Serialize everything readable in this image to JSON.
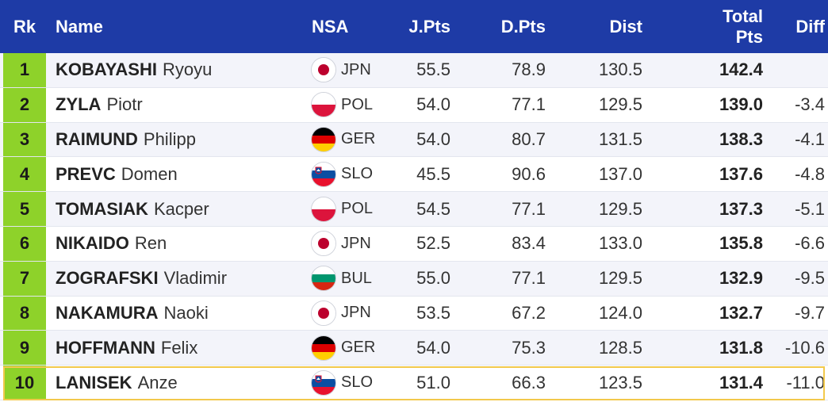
{
  "header": {
    "rk": "Rk",
    "name": "Name",
    "nsa": "NSA",
    "jpts": "J.Pts",
    "dpts": "D.Pts",
    "dist": "Dist",
    "total_line1": "Total",
    "total_line2": "Pts",
    "diff": "Diff"
  },
  "colors": {
    "header_bg": "#1e3ba6",
    "rank_bg": "#8ed22a",
    "highlight": "#f2c94c"
  },
  "rows": [
    {
      "rk": "1",
      "last": "KOBAYASHI",
      "first": "Ryoyu",
      "nsa": "JPN",
      "flag": "jpn-flag-icon",
      "jpts": "55.5",
      "dpts": "78.9",
      "dist": "130.5",
      "total": "142.4",
      "diff": ""
    },
    {
      "rk": "2",
      "last": "ZYLA",
      "first": "Piotr",
      "nsa": "POL",
      "flag": "pol-flag-icon",
      "jpts": "54.0",
      "dpts": "77.1",
      "dist": "129.5",
      "total": "139.0",
      "diff": "-3.4"
    },
    {
      "rk": "3",
      "last": "RAIMUND",
      "first": "Philipp",
      "nsa": "GER",
      "flag": "ger-flag-icon",
      "jpts": "54.0",
      "dpts": "80.7",
      "dist": "131.5",
      "total": "138.3",
      "diff": "-4.1"
    },
    {
      "rk": "4",
      "last": "PREVC",
      "first": "Domen",
      "nsa": "SLO",
      "flag": "slo-flag-icon",
      "jpts": "45.5",
      "dpts": "90.6",
      "dist": "137.0",
      "total": "137.6",
      "diff": "-4.8"
    },
    {
      "rk": "5",
      "last": "TOMASIAK",
      "first": "Kacper",
      "nsa": "POL",
      "flag": "pol-flag-icon",
      "jpts": "54.5",
      "dpts": "77.1",
      "dist": "129.5",
      "total": "137.3",
      "diff": "-5.1"
    },
    {
      "rk": "6",
      "last": "NIKAIDO",
      "first": "Ren",
      "nsa": "JPN",
      "flag": "jpn-flag-icon",
      "jpts": "52.5",
      "dpts": "83.4",
      "dist": "133.0",
      "total": "135.8",
      "diff": "-6.6"
    },
    {
      "rk": "7",
      "last": "ZOGRAFSKI",
      "first": "Vladimir",
      "nsa": "BUL",
      "flag": "bul-flag-icon",
      "jpts": "55.0",
      "dpts": "77.1",
      "dist": "129.5",
      "total": "132.9",
      "diff": "-9.5"
    },
    {
      "rk": "8",
      "last": "NAKAMURA",
      "first": "Naoki",
      "nsa": "JPN",
      "flag": "jpn-flag-icon",
      "jpts": "53.5",
      "dpts": "67.2",
      "dist": "124.0",
      "total": "132.7",
      "diff": "-9.7"
    },
    {
      "rk": "9",
      "last": "HOFFMANN",
      "first": "Felix",
      "nsa": "GER",
      "flag": "ger-flag-icon",
      "jpts": "54.0",
      "dpts": "75.3",
      "dist": "128.5",
      "total": "131.8",
      "diff": "-10.6"
    },
    {
      "rk": "10",
      "last": "LANISEK",
      "first": "Anze",
      "nsa": "SLO",
      "flag": "slo-flag-icon",
      "jpts": "51.0",
      "dpts": "66.3",
      "dist": "123.5",
      "total": "131.4",
      "diff": "-11.0"
    }
  ]
}
